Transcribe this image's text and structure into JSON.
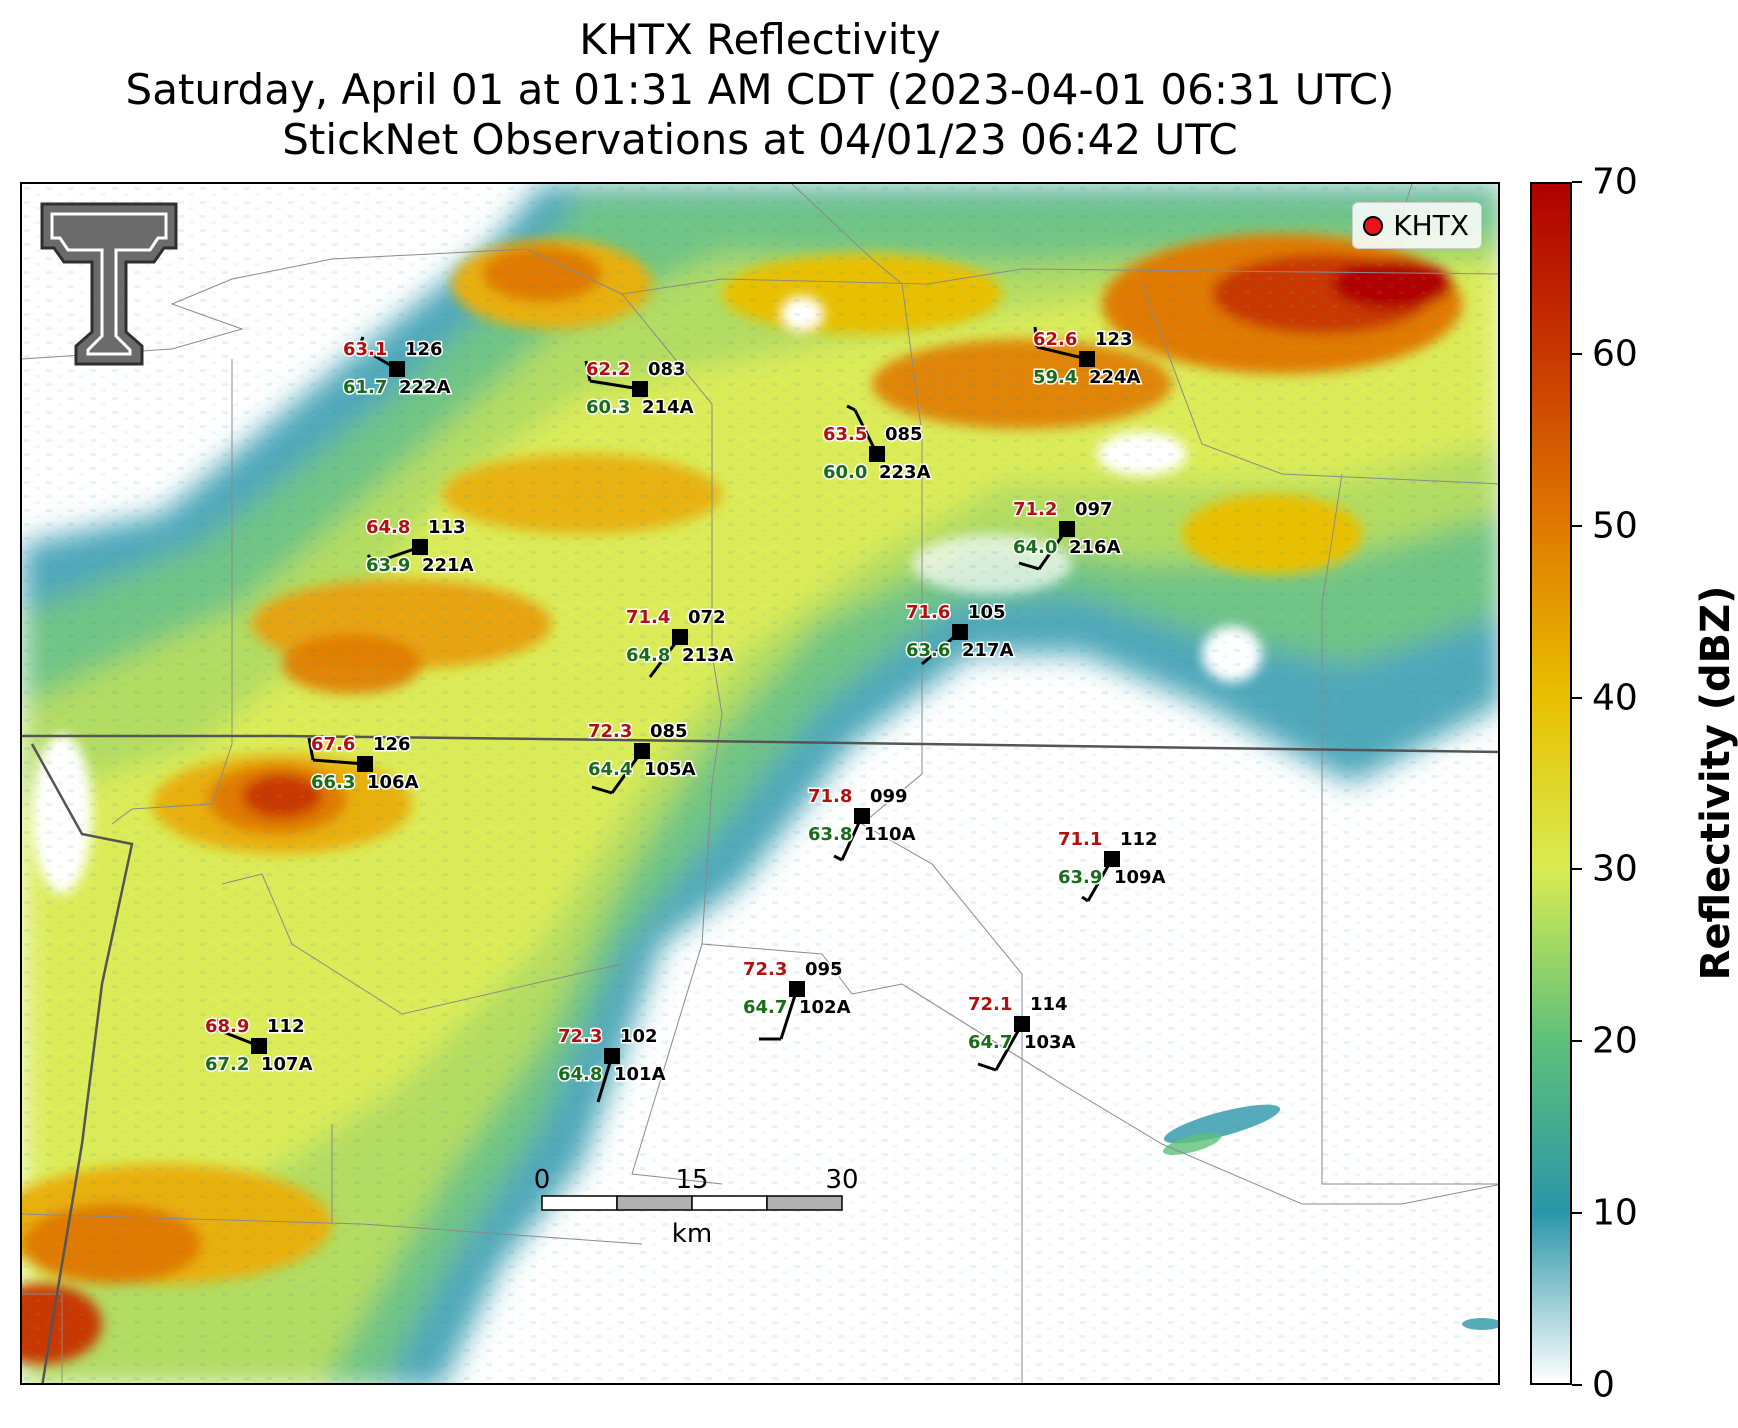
{
  "title": {
    "line1": "KHTX Reflectivity",
    "line2": "Saturday, April 01 at 01:31 AM CDT (2023-04-01 06:31 UTC)",
    "line3": "StickNet Observations at 04/01/23 06:42 UTC"
  },
  "legend": {
    "label": "KHTX",
    "marker_color": "#e8141c"
  },
  "colorbar": {
    "title": "Reflectivity (dBZ)",
    "ticks": [
      "0",
      "10",
      "20",
      "30",
      "40",
      "50",
      "60",
      "70"
    ],
    "colors": [
      "#ffffff",
      "#2a96a8",
      "#5ec07a",
      "#d8ec52",
      "#e8c000",
      "#e07a00",
      "#c83800",
      "#b00000"
    ]
  },
  "scale_bar": {
    "labels": [
      "0",
      "15",
      "30"
    ],
    "unit": "km"
  },
  "logo": {
    "text": "TT",
    "color": "#606060"
  },
  "stations": [
    {
      "id": "222A",
      "temp": "63.1",
      "dew": "61.7",
      "dir": "126"
    },
    {
      "id": "214A",
      "temp": "62.2",
      "dew": "60.3",
      "dir": "083"
    },
    {
      "id": "223A",
      "temp": "63.5",
      "dew": "60.0",
      "dir": "085"
    },
    {
      "id": "224A",
      "temp": "62.6",
      "dew": "59.4",
      "dir": "123"
    },
    {
      "id": "221A",
      "temp": "64.8",
      "dew": "63.9",
      "dir": "113"
    },
    {
      "id": "216A",
      "temp": "71.2",
      "dew": "64.0",
      "dir": "097"
    },
    {
      "id": "213A",
      "temp": "71.4",
      "dew": "64.8",
      "dir": "072"
    },
    {
      "id": "217A",
      "temp": "71.6",
      "dew": "63.6",
      "dir": "105"
    },
    {
      "id": "106A",
      "temp": "67.6",
      "dew": "66.3",
      "dir": "126"
    },
    {
      "id": "105A",
      "temp": "72.3",
      "dew": "64.4",
      "dir": "085"
    },
    {
      "id": "110A",
      "temp": "71.8",
      "dew": "63.8",
      "dir": "099"
    },
    {
      "id": "109A",
      "temp": "71.1",
      "dew": "63.9",
      "dir": "112"
    },
    {
      "id": "102A",
      "temp": "72.3",
      "dew": "64.7",
      "dir": "095"
    },
    {
      "id": "103A",
      "temp": "72.1",
      "dew": "64.7",
      "dir": "114"
    },
    {
      "id": "107A",
      "temp": "68.9",
      "dew": "67.2",
      "dir": "112"
    },
    {
      "id": "101A",
      "temp": "72.3",
      "dew": "64.8",
      "dir": "102"
    }
  ]
}
